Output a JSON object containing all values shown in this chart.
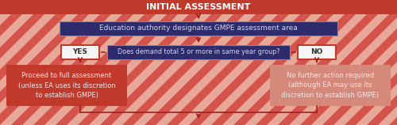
{
  "title": "INITIAL ASSESSMENT",
  "title_bg": "#c0392b",
  "title_color": "#ffffff",
  "bg_base": "#d4534a",
  "stripe_light": "#e8a898",
  "box1_text": "Education authority designates GMPE assessment area",
  "box1_bg": "#2d2b6b",
  "box1_color": "#d8d8d8",
  "box2_text": "Does demand total 5 or more in same year group?",
  "box2_bg": "#2d2b6b",
  "box2_color": "#d8d8d8",
  "yes_text": "YES",
  "yes_bg": "#f5f5f5",
  "yes_border": "#c0392b",
  "no_text": "NO",
  "no_bg": "#f5f5f5",
  "no_border": "#c0392b",
  "left_box_text": "Proceed to full assessment\n(unless EA uses its discretion\nto establish GMPE)",
  "left_box_bg": "#c0392b",
  "left_box_color": "#f5e8e8",
  "right_box_text": "No further action required\n(although EA may use its\ndiscretion to establish GMPE)",
  "right_box_bg": "#d4897a",
  "right_box_color": "#f5e8e8",
  "arrow_color": "#a02020"
}
